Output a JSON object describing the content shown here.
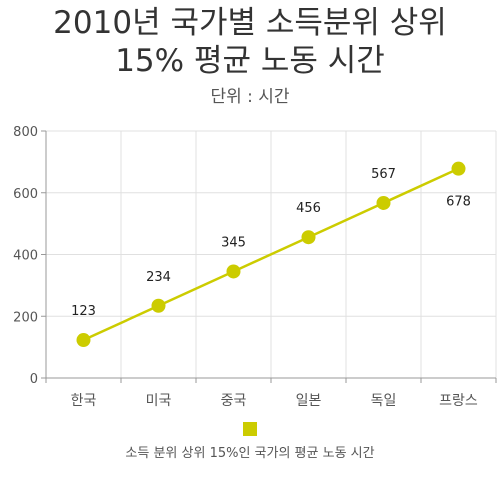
{
  "title_line1": "2010년 국가별 소득분위 상위",
  "title_line2": "15% 평균 노동 시간",
  "subtitle": "단위 : 시간",
  "colors": {
    "series": "#cccc00",
    "grid": "#e0e0e0",
    "axis": "#999999"
  },
  "chart_data": {
    "type": "line",
    "categories": [
      "한국",
      "미국",
      "중국",
      "일본",
      "독일",
      "프랑스"
    ],
    "series": [
      {
        "name": "소득 분위 상위 15%인 국가의 평균 노동 시간",
        "values": [
          123,
          234,
          345,
          456,
          567,
          678
        ]
      }
    ],
    "data_labels": [
      "123",
      "234",
      "345",
      "456",
      "567",
      "678"
    ],
    "yticks": [
      "0",
      "200",
      "400",
      "600",
      "800"
    ],
    "ylim": [
      0,
      800
    ],
    "grid": true,
    "legend": "bottom"
  }
}
